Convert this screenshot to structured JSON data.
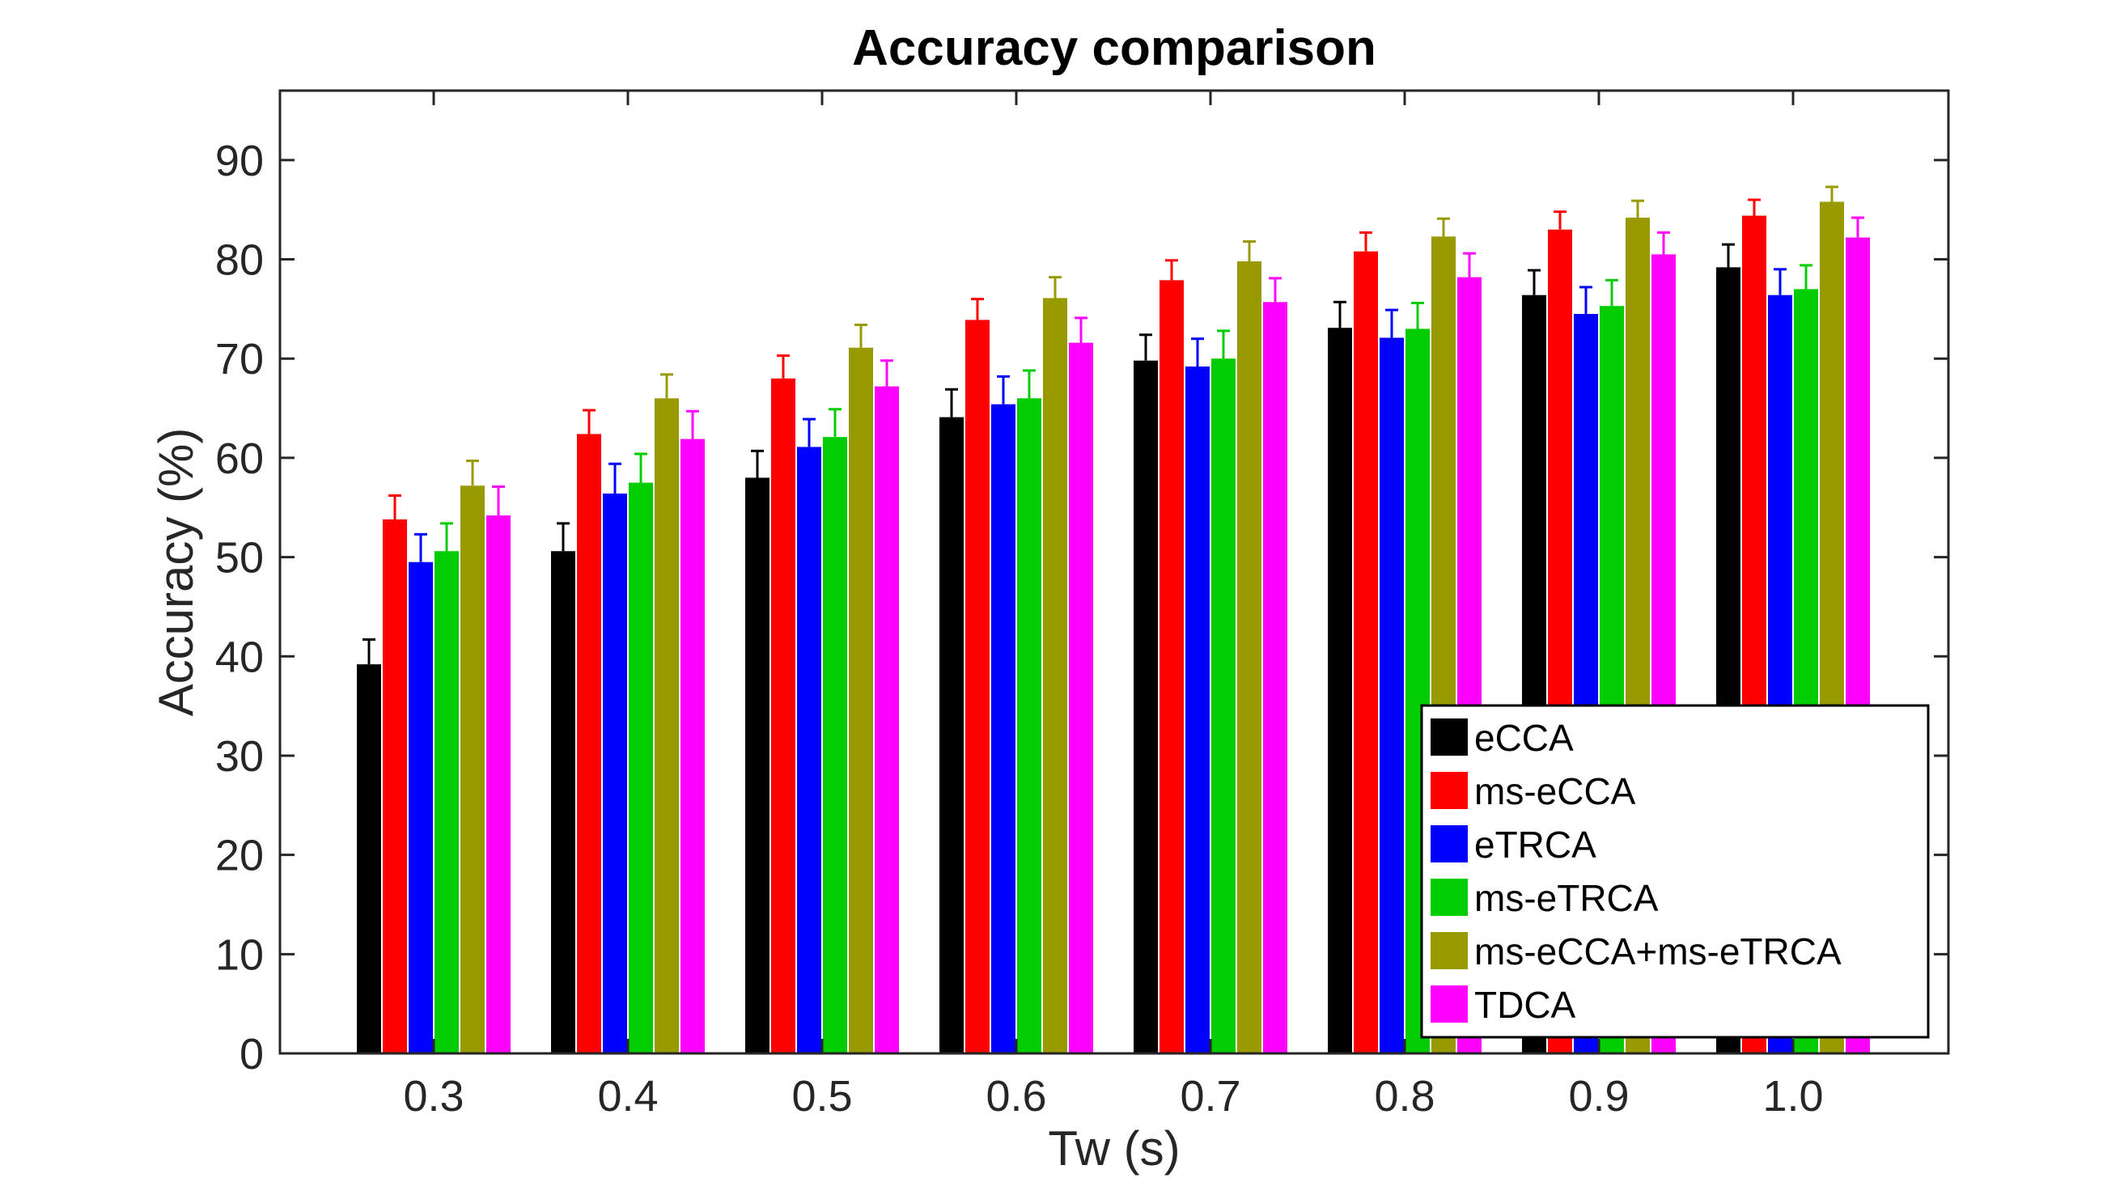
{
  "chart_data": {
    "type": "bar",
    "title": "Accuracy comparison",
    "xlabel": "Tw (s)",
    "ylabel": "Accuracy (%)",
    "categories": [
      "0.3",
      "0.4",
      "0.5",
      "0.6",
      "0.7",
      "0.8",
      "0.9",
      "1.0"
    ],
    "ylim": [
      0,
      97
    ],
    "yticks": [
      "0",
      "10",
      "20",
      "30",
      "40",
      "50",
      "60",
      "70",
      "80",
      "90"
    ],
    "grid": false,
    "legend_position": "bottom-right",
    "series": [
      {
        "name": "eCCA",
        "color": "#000000",
        "values": [
          39.2,
          50.6,
          58.0,
          64.1,
          69.8,
          73.1,
          76.4,
          79.2
        ],
        "errors": [
          2.5,
          2.8,
          2.7,
          2.8,
          2.6,
          2.6,
          2.5,
          2.3
        ]
      },
      {
        "name": "ms-eCCA",
        "color": "#ff0000",
        "values": [
          53.8,
          62.4,
          68.0,
          73.9,
          77.9,
          80.8,
          83.0,
          84.4
        ],
        "errors": [
          2.4,
          2.4,
          2.3,
          2.1,
          2.0,
          1.9,
          1.8,
          1.6
        ]
      },
      {
        "name": "eTRCA",
        "color": "#0000ff",
        "values": [
          49.5,
          56.4,
          61.1,
          65.4,
          69.2,
          72.1,
          74.5,
          76.4
        ],
        "errors": [
          2.8,
          3.0,
          2.8,
          2.8,
          2.8,
          2.8,
          2.7,
          2.6
        ]
      },
      {
        "name": "ms-eTRCA",
        "color": "#00cc00",
        "values": [
          50.6,
          57.5,
          62.1,
          66.0,
          70.0,
          73.0,
          75.3,
          77.0
        ],
        "errors": [
          2.8,
          2.9,
          2.8,
          2.8,
          2.8,
          2.6,
          2.6,
          2.4
        ]
      },
      {
        "name": "ms-eCCA+ms-eTRCA",
        "color": "#999900",
        "values": [
          57.2,
          66.0,
          71.1,
          76.1,
          79.8,
          82.3,
          84.2,
          85.8
        ],
        "errors": [
          2.5,
          2.4,
          2.3,
          2.1,
          2.0,
          1.8,
          1.7,
          1.5
        ]
      },
      {
        "name": "TDCA",
        "color": "#ff00ff",
        "values": [
          54.2,
          61.9,
          67.2,
          71.6,
          75.7,
          78.2,
          80.5,
          82.2
        ],
        "errors": [
          2.9,
          2.8,
          2.6,
          2.5,
          2.4,
          2.4,
          2.2,
          2.0
        ]
      }
    ]
  }
}
